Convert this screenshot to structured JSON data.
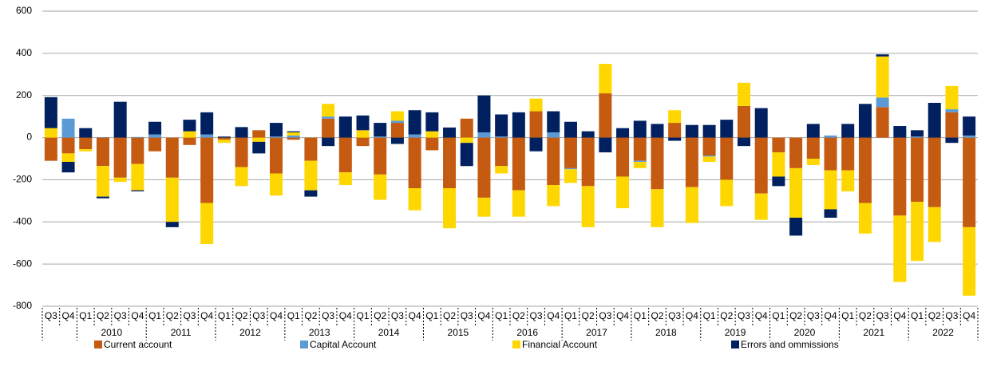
{
  "chart_data": {
    "type": "bar",
    "stacked": true,
    "categories": [
      "Q3",
      "Q4",
      "Q1",
      "Q2",
      "Q3",
      "Q4",
      "Q1",
      "Q2",
      "Q3",
      "Q4",
      "Q1",
      "Q2",
      "Q3",
      "Q4",
      "Q1",
      "Q2",
      "Q3",
      "Q4",
      "Q1",
      "Q2",
      "Q3",
      "Q4",
      "Q1",
      "Q2",
      "Q3",
      "Q4",
      "Q1",
      "Q2",
      "Q3",
      "Q4",
      "Q1",
      "Q2",
      "Q3",
      "Q4",
      "Q1",
      "Q2",
      "Q3",
      "Q4",
      "Q1",
      "Q2",
      "Q3",
      "Q4",
      "Q1",
      "Q2",
      "Q3",
      "Q4",
      "Q1",
      "Q2",
      "Q3",
      "Q4",
      "Q1",
      "Q2",
      "Q3",
      "Q4"
    ],
    "x_groups": [
      "2010",
      "2011",
      "2012",
      "2013",
      "2014",
      "2015",
      "2016",
      "2017",
      "2018",
      "2019",
      "2020",
      "2021",
      "2022"
    ],
    "series": [
      {
        "name": "Current account",
        "color": "#c55a11",
        "values": [
          -110,
          -75,
          -55,
          -135,
          -190,
          -125,
          -65,
          -190,
          -35,
          -310,
          -10,
          -140,
          35,
          -170,
          -10,
          -110,
          90,
          -165,
          -40,
          -175,
          70,
          -240,
          -60,
          -240,
          90,
          -285,
          -135,
          -250,
          125,
          -225,
          -145,
          -230,
          210,
          -185,
          -110,
          -245,
          70,
          -235,
          -85,
          -200,
          150,
          -265,
          -70,
          -145,
          -100,
          -155,
          -155,
          -310,
          145,
          -370,
          -305,
          -330,
          120,
          -425
        ]
      },
      {
        "name": "Capital Account",
        "color": "#5b9bd5",
        "values": [
          0,
          90,
          0,
          2,
          0,
          3,
          15,
          0,
          0,
          15,
          0,
          0,
          0,
          5,
          10,
          0,
          10,
          0,
          0,
          5,
          10,
          15,
          0,
          0,
          0,
          25,
          5,
          0,
          0,
          25,
          -5,
          0,
          0,
          0,
          -5,
          0,
          0,
          0,
          -5,
          0,
          0,
          0,
          0,
          0,
          0,
          10,
          0,
          0,
          45,
          0,
          5,
          0,
          15,
          10
        ]
      },
      {
        "name": "Financial Account",
        "color": "#ffd700",
        "values": [
          45,
          -40,
          -10,
          -145,
          -20,
          -125,
          0,
          -210,
          30,
          -195,
          -15,
          -90,
          -20,
          -105,
          15,
          -140,
          60,
          -60,
          35,
          -120,
          45,
          -105,
          30,
          -190,
          -25,
          -90,
          -35,
          -125,
          60,
          -100,
          -65,
          -195,
          140,
          -150,
          -30,
          -180,
          60,
          -170,
          -25,
          -125,
          110,
          -125,
          -115,
          -235,
          -30,
          -185,
          -100,
          -145,
          195,
          -315,
          -280,
          -165,
          110,
          -325
        ]
      },
      {
        "name": "Errors and ommissions",
        "color": "#002060",
        "values": [
          147,
          -50,
          45,
          -8,
          170,
          -5,
          60,
          -25,
          55,
          105,
          5,
          50,
          -55,
          65,
          5,
          -30,
          -40,
          100,
          70,
          65,
          -30,
          115,
          90,
          48,
          -110,
          175,
          105,
          120,
          -65,
          100,
          75,
          30,
          -70,
          45,
          80,
          65,
          -15,
          60,
          60,
          85,
          -40,
          140,
          -45,
          -85,
          65,
          -40,
          65,
          160,
          10,
          55,
          30,
          165,
          -25,
          90
        ]
      }
    ],
    "ylim": [
      -800,
      600
    ],
    "yticks": [
      -800,
      -600,
      -400,
      -200,
      0,
      200,
      400,
      600
    ],
    "grid": true,
    "legend": "bottom"
  }
}
